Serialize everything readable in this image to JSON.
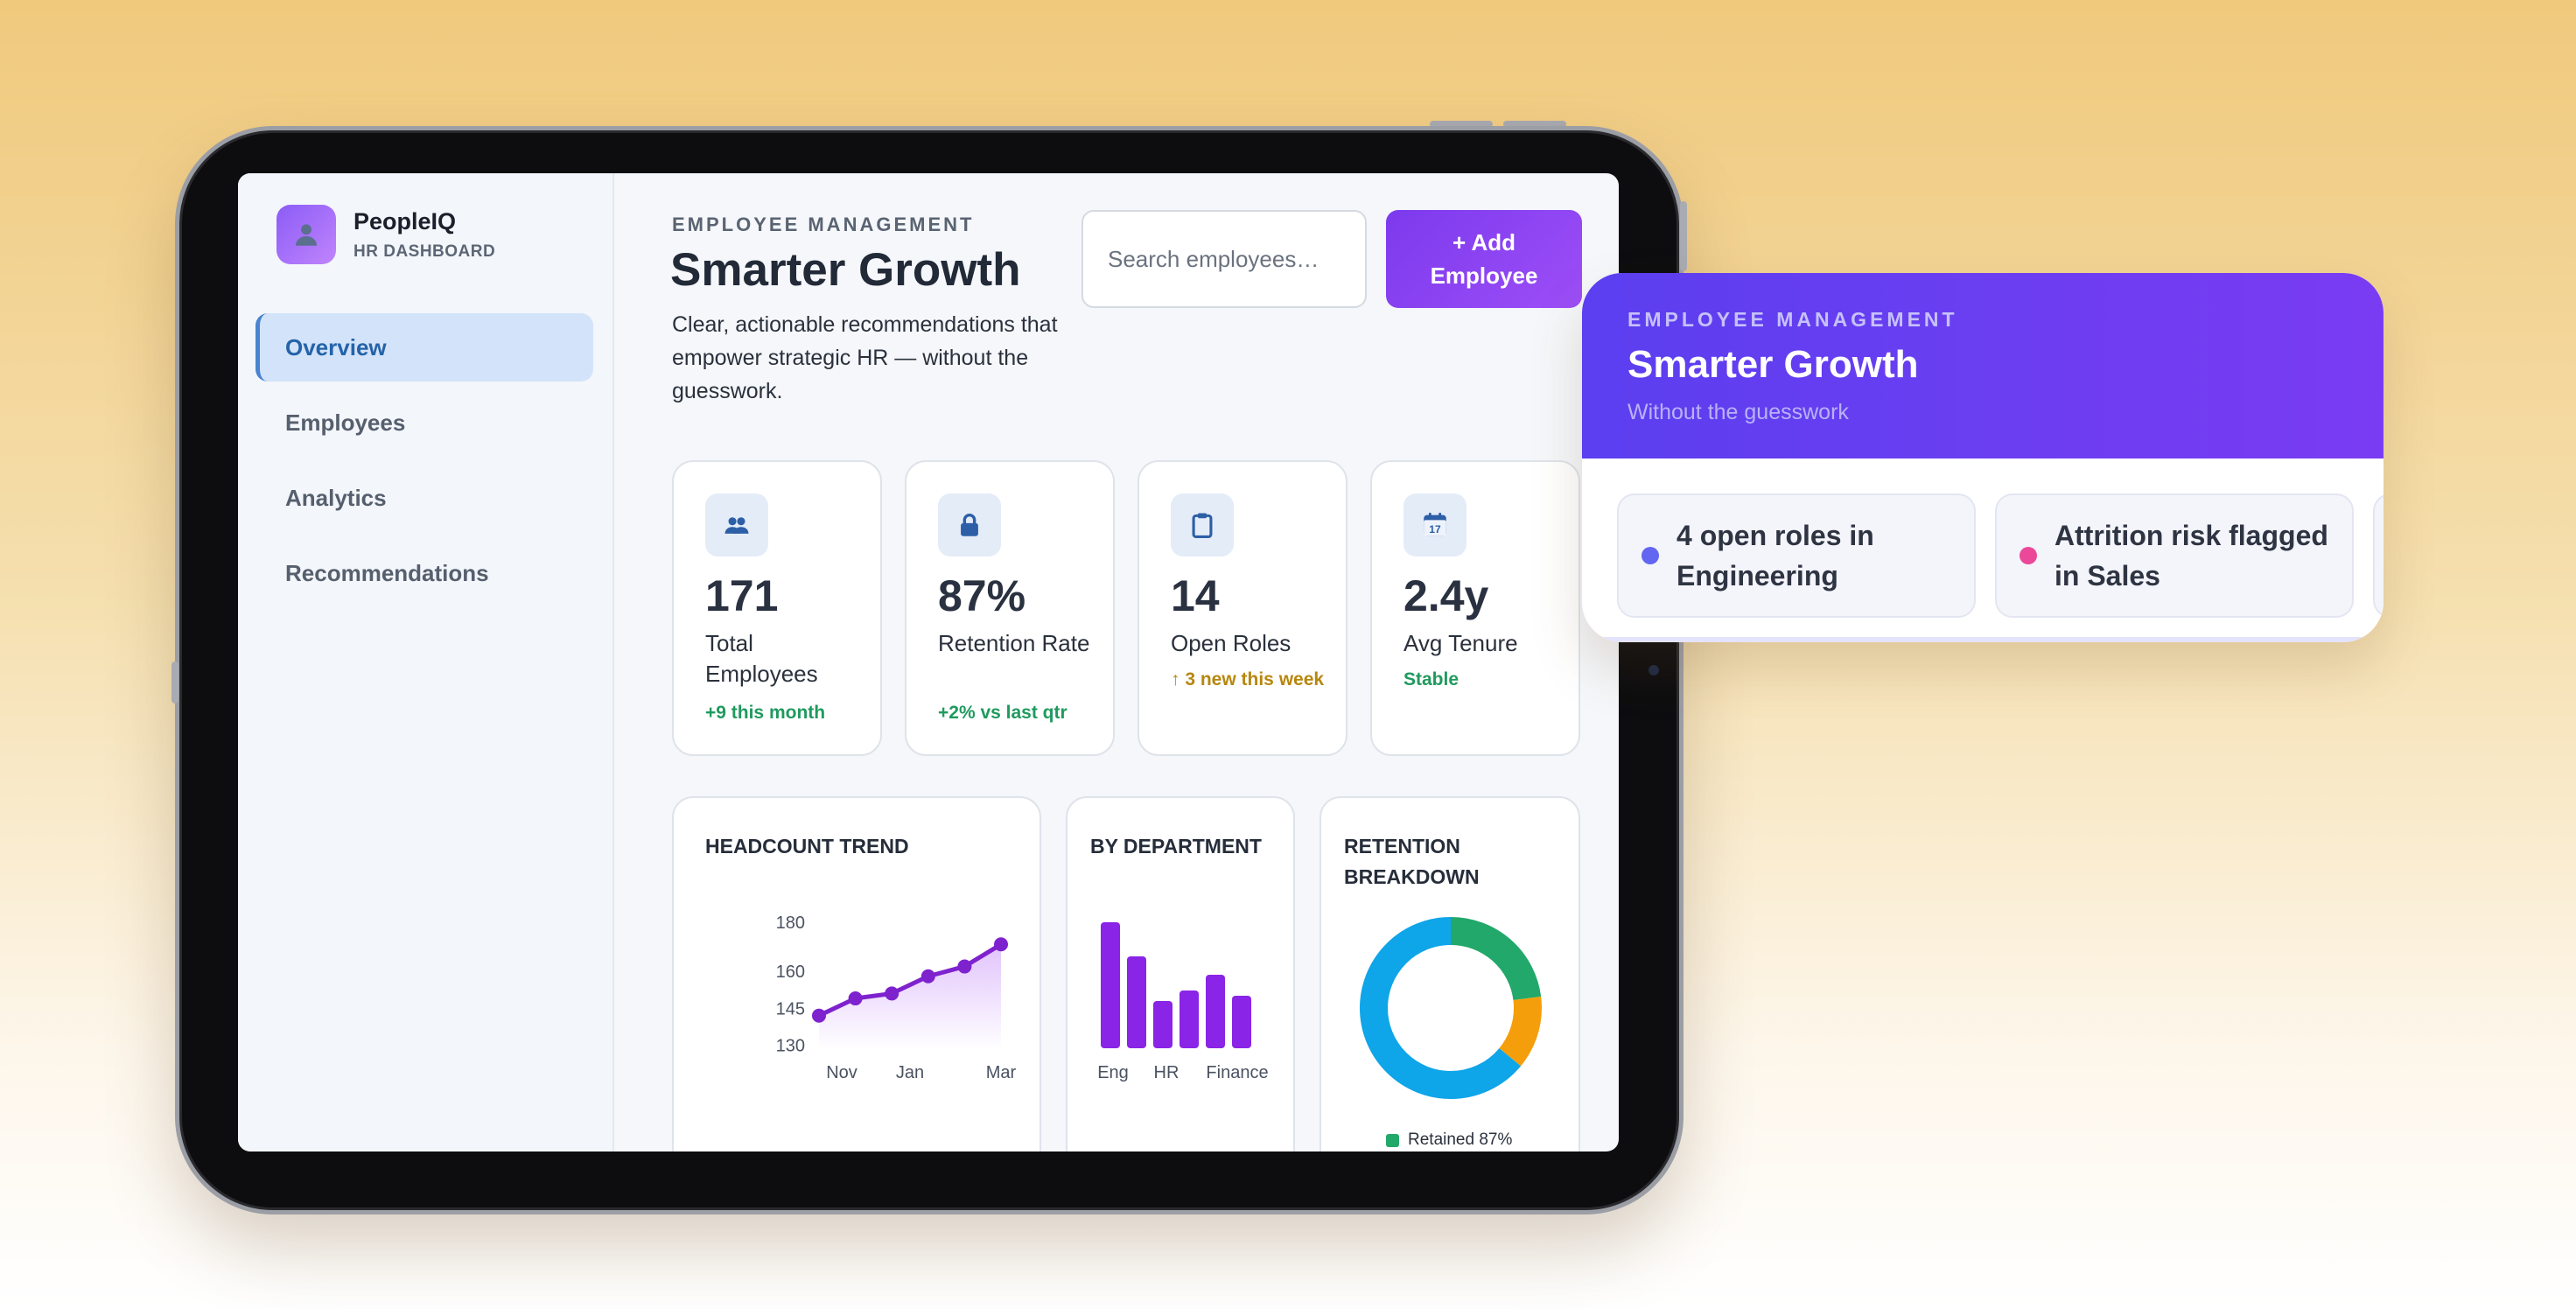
{
  "brand": {
    "name": "PeopleIQ",
    "subtitle": "HR DASHBOARD"
  },
  "sidebar": {
    "items": [
      {
        "label": "Overview",
        "active": true
      },
      {
        "label": "Employees",
        "active": false
      },
      {
        "label": "Analytics",
        "active": false
      },
      {
        "label": "Recommendations",
        "active": false
      }
    ]
  },
  "header": {
    "eyebrow": "EMPLOYEE MANAGEMENT",
    "title": "Smarter Growth",
    "description": "Clear, actionable recommendations that empower strategic HR — without the guesswork.",
    "search_placeholder": "Search employees…",
    "add_button": "+ Add Employee"
  },
  "stats": [
    {
      "icon": "people-icon",
      "value": "171",
      "label": "Total Employees",
      "delta": "+9 this month",
      "delta_color": "#1f9a5e"
    },
    {
      "icon": "lock-icon",
      "value": "87%",
      "label": "Retention Rate",
      "delta": "+2% vs last qtr",
      "delta_color": "#1f9a5e"
    },
    {
      "icon": "clipboard-icon",
      "value": "14",
      "label": "Open Roles",
      "delta": "↑ 3 new this week",
      "delta_color": "#b7870e"
    },
    {
      "icon": "calendar-icon",
      "value": "2.4y",
      "label": "Avg Tenure",
      "delta": "Stable",
      "delta_color": "#1f9a5e"
    }
  ],
  "calendar_icon_day": "17",
  "cards": {
    "headcount_title": "HEADCOUNT TREND",
    "department_title": "BY DEPARTMENT",
    "retention_title": "RETENTION BREAKDOWN"
  },
  "chart_data": [
    {
      "type": "line",
      "title": "HEADCOUNT TREND",
      "x_tick_labels": [
        "Nov",
        "Jan",
        "Mar"
      ],
      "y_ticks": [
        130,
        145,
        160,
        180
      ],
      "ylim": [
        128,
        180
      ],
      "series": [
        {
          "values": [
            142,
            149,
            151,
            158,
            162,
            171
          ],
          "color": "#7e22ce"
        }
      ]
    },
    {
      "type": "bar",
      "title": "BY DEPARTMENT",
      "x_tick_labels": [
        "Eng",
        "HR",
        "Finance"
      ],
      "values": [
        48,
        35,
        18,
        22,
        28,
        20
      ],
      "ylim": [
        0,
        50
      ],
      "color": "#8a24e6"
    },
    {
      "type": "pie",
      "title": "RETENTION BREAKDOWN",
      "segments": [
        {
          "value": 64,
          "color": "#0ea5e9"
        },
        {
          "value": 13,
          "color": "#f59e0b"
        },
        {
          "value": 23,
          "color": "#22a86a"
        }
      ],
      "legend": [
        {
          "label": "Retained 87%",
          "color": "#22a86a"
        }
      ]
    }
  ],
  "float_card": {
    "eyebrow": "EMPLOYEE MANAGEMENT",
    "title": "Smarter Growth",
    "subtitle": "Without the guesswork",
    "alerts": [
      {
        "text": "4 open roles in Engineering",
        "dot_color": "#6366f1"
      },
      {
        "text": "Attrition risk flagged in Sales",
        "dot_color": "#ec4899"
      }
    ]
  }
}
